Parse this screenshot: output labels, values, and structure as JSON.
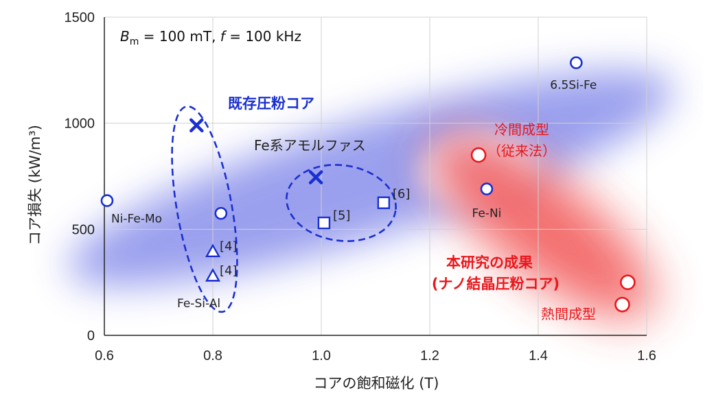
{
  "chart_data": {
    "type": "scatter",
    "xlabel": "コアの飽和磁化 (T)",
    "ylabel": "コア損失 (kW/m³)",
    "xlim": [
      0.6,
      1.6
    ],
    "ylim": [
      0,
      1500
    ],
    "xticks": [
      "0.6",
      "0.8",
      "1.0",
      "1.2",
      "1.4",
      "1.6"
    ],
    "yticks": [
      "0",
      "500",
      "1000",
      "1500"
    ],
    "grid": true,
    "condition": {
      "b_sym": "B",
      "b_sub": "m",
      "b_val": " = 100 mT, ",
      "f_sym": "f",
      "f_val": " = 100 kHz"
    },
    "colors": {
      "blue": "#1a2fd0",
      "red": "#e8171c",
      "grid": "#d0d0d0"
    },
    "series": [
      {
        "marker": "circle",
        "color": "#1a2fd0",
        "points": [
          {
            "x": 0.605,
            "y": 635,
            "label": "Ni-Fe-Mo"
          },
          {
            "x": 0.815,
            "y": 575,
            "label": ""
          },
          {
            "x": 1.305,
            "y": 690,
            "label": "Fe-Ni"
          },
          {
            "x": 1.47,
            "y": 1285,
            "label": "6.5Si-Fe"
          }
        ]
      },
      {
        "marker": "x",
        "color": "#1a2fd0",
        "points": [
          {
            "x": 0.77,
            "y": 990,
            "label": ""
          },
          {
            "x": 0.99,
            "y": 745,
            "label": ""
          }
        ]
      },
      {
        "marker": "triangle",
        "color": "#1a2fd0",
        "points": [
          {
            "x": 0.8,
            "y": 395,
            "label": "[4]"
          },
          {
            "x": 0.8,
            "y": 280,
            "label": "[4]"
          }
        ]
      },
      {
        "marker": "square",
        "color": "#1a2fd0",
        "points": [
          {
            "x": 1.005,
            "y": 530,
            "label": "[5]"
          },
          {
            "x": 1.115,
            "y": 625,
            "label": "[6]"
          }
        ]
      },
      {
        "marker": "circle-large",
        "color": "#e8171c",
        "points": [
          {
            "x": 1.29,
            "y": 850,
            "label": ""
          },
          {
            "x": 1.565,
            "y": 250,
            "label": ""
          },
          {
            "x": 1.555,
            "y": 145,
            "label": ""
          }
        ]
      }
    ],
    "annotations": {
      "fe_si_al": "Fe-Si-Al",
      "fe_amorphous": "Fe系アモルファス",
      "existing": "既存圧粉コア",
      "cold_line1": "冷間成型",
      "cold_line2": "（従来法）",
      "result_line1": "本研究の成果",
      "result_line2": "(ナノ結晶圧粉コア)",
      "hot": "熱間成型"
    }
  }
}
